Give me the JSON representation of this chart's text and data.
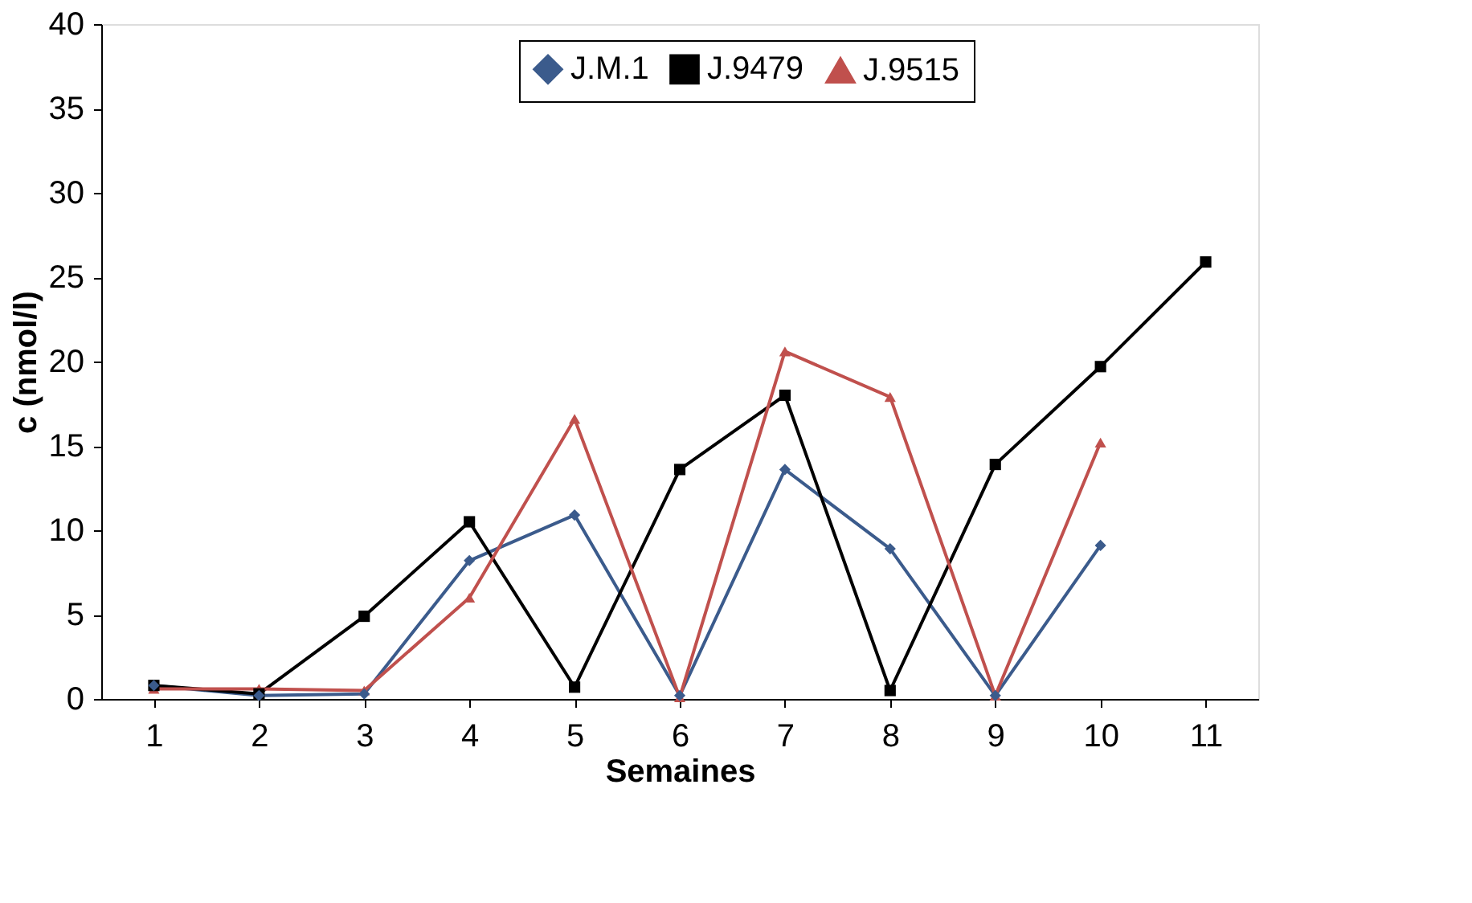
{
  "chart_data": {
    "type": "line",
    "xlabel": "Semaines",
    "ylabel": "c (nmol/l)",
    "categories": [
      "1",
      "2",
      "3",
      "4",
      "5",
      "6",
      "7",
      "8",
      "9",
      "10",
      "11"
    ],
    "series": [
      {
        "name": "J.M.1",
        "color": "#3b5b8c",
        "marker": "diamond",
        "values": [
          0.8,
          0.2,
          0.3,
          8.2,
          10.9,
          0.2,
          13.6,
          8.9,
          0.2,
          9.1,
          null
        ]
      },
      {
        "name": "J.9479",
        "color": "#000000",
        "marker": "square",
        "values": [
          0.8,
          0.3,
          4.9,
          10.5,
          0.7,
          13.6,
          18.0,
          0.5,
          13.9,
          19.7,
          25.9
        ]
      },
      {
        "name": "J.9515",
        "color": "#c0504d",
        "marker": "triangle",
        "values": [
          0.6,
          0.6,
          0.5,
          6.0,
          16.6,
          0.1,
          20.6,
          17.9,
          0.2,
          15.2,
          null
        ]
      }
    ],
    "ylim": [
      0,
      40
    ],
    "yticks": [
      0,
      5,
      10,
      15,
      20,
      25,
      30,
      35,
      40
    ],
    "grid": false,
    "legend": "top",
    "line_style": "solid"
  }
}
